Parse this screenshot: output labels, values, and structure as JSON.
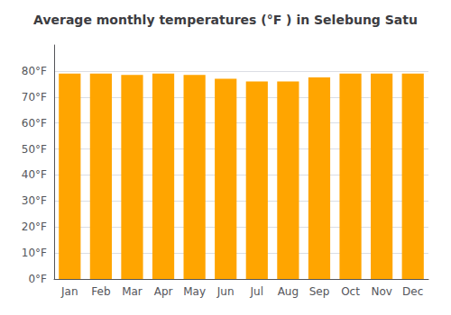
{
  "chart_data": {
    "type": "bar",
    "title": "Average monthly temperatures (°F ) in Selebung Satu",
    "categories": [
      "Jan",
      "Feb",
      "Mar",
      "Apr",
      "May",
      "Jun",
      "Jul",
      "Aug",
      "Sep",
      "Oct",
      "Nov",
      "Dec"
    ],
    "values": [
      79,
      79,
      78.5,
      79,
      78.5,
      77,
      76,
      76,
      77.5,
      79,
      79,
      79
    ],
    "color": "#FFA500",
    "ylim": [
      0,
      90
    ],
    "yticks": [
      {
        "value": 0,
        "label": "0°F"
      },
      {
        "value": 10,
        "label": "10°F"
      },
      {
        "value": 20,
        "label": "20°F"
      },
      {
        "value": 30,
        "label": "30°F"
      },
      {
        "value": 40,
        "label": "40°F"
      },
      {
        "value": 50,
        "label": "50°F"
      },
      {
        "value": 60,
        "label": "60°F"
      },
      {
        "value": 70,
        "label": "70°F"
      },
      {
        "value": 80,
        "label": "80°F"
      }
    ],
    "grid": true
  }
}
